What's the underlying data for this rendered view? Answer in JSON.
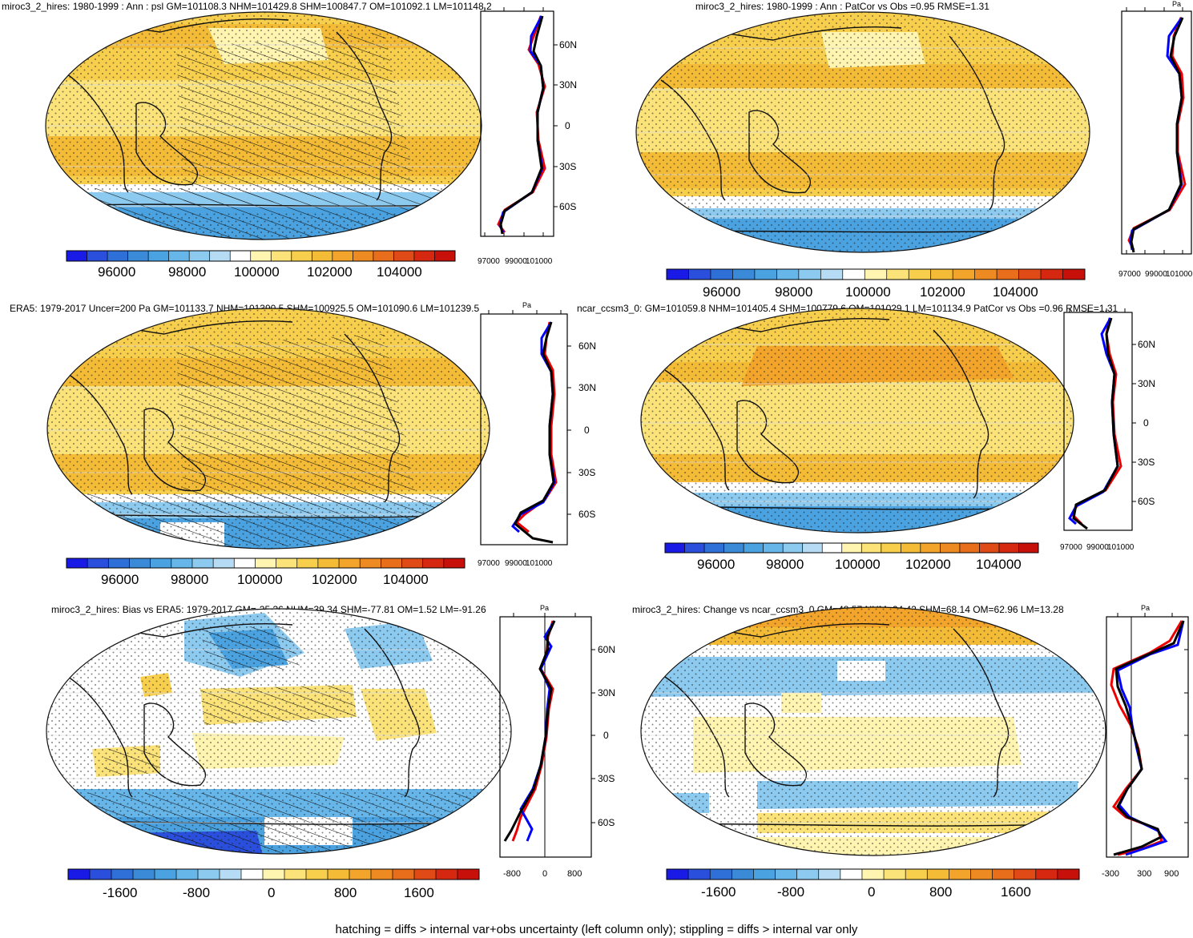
{
  "footer": "hatching = diffs > internal var+obs uncertainty (left column only); stippling = diffs > internal var only",
  "palette_full": [
    "#1a1ae6",
    "#2a4fdc",
    "#2f6fd8",
    "#3a8ad8",
    "#4aa2e0",
    "#66b6ea",
    "#8ccaf0",
    "#b5dcf4",
    "#ffffff",
    "#fff5b0",
    "#fbe37a",
    "#f7cf4d",
    "#f4bb36",
    "#f2a52a",
    "#ee8a22",
    "#e86e1c",
    "#e04a16",
    "#d62810",
    "#c8100b"
  ],
  "latitude_ticks": [
    "60N",
    "30N",
    "0",
    "30S",
    "60S"
  ],
  "panels": [
    {
      "id": "top-left",
      "title": "miroc3_2_hires: 1980-1999 : Ann : psl GM=101108.3 NHM=101429.8 SHM=100847.7 OM=101092.1 LM=101148.2",
      "hatched": true,
      "profile": {
        "xticks": [
          "97000",
          "99000",
          "101000"
        ],
        "unit": "",
        "lat_labels": true
      },
      "colorbar_labels": [
        "96000",
        "98000",
        "100000",
        "102000",
        "104000"
      ]
    },
    {
      "id": "top-right",
      "title": "miroc3_2_hires: 1980-1999 : Ann : PatCor vs Obs =0.95 RMSE=1.31",
      "hatched": false,
      "profile": {
        "xticks": [
          "97000",
          "99000",
          "101000"
        ],
        "unit": "Pa",
        "lat_labels": false
      },
      "colorbar_labels": [
        "96000",
        "98000",
        "100000",
        "102000",
        "104000"
      ]
    },
    {
      "id": "mid-left",
      "title": "ERA5: 1979-2017 Uncer=200 Pa GM=101133.7 NHM=101390.5 SHM=100925.5 OM=101090.6 LM=101239.5",
      "hatched": true,
      "profile": {
        "xticks": [
          "97000",
          "99000",
          "101000"
        ],
        "unit": "Pa",
        "lat_labels": true
      },
      "colorbar_labels": [
        "96000",
        "98000",
        "100000",
        "102000",
        "104000"
      ]
    },
    {
      "id": "mid-right",
      "title": "ncar_ccsm3_0: GM=101059.8 NHM=101405.4 SHM=100779.6 OM=101029.1 LM=101134.9 PatCor vs Obs =0.96 RMSE=1.31",
      "hatched": false,
      "profile": {
        "xticks": [
          "97000",
          "99000",
          "101000"
        ],
        "unit": "",
        "lat_labels": true
      },
      "colorbar_labels": [
        "96000",
        "98000",
        "100000",
        "102000",
        "104000"
      ]
    },
    {
      "id": "bottom-left",
      "title": "miroc3_2_hires: Bias vs ERA5: 1979-2017 GM=-25.36 NHM=39.34 SHM=-77.81 OM=1.52 LM=-91.26",
      "hatched": true,
      "profile": {
        "xticks": [
          "-800",
          "0",
          "800"
        ],
        "unit": "Pa",
        "lat_labels": true
      },
      "colorbar_labels": [
        "-1600",
        "-800",
        "0",
        "800",
        "1600"
      ]
    },
    {
      "id": "bottom-right",
      "title": "miroc3_2_hires: Change vs ncar_ccsm3_0 GM=48.57 NHM=24.42 SHM=68.14 OM=62.96 LM=13.28",
      "hatched": false,
      "profile": {
        "xticks": [
          "-300",
          "300",
          "900"
        ],
        "unit": "Pa",
        "lat_labels": false
      },
      "colorbar_labels": [
        "-1600",
        "-800",
        "0",
        "800",
        "1600"
      ]
    }
  ]
}
